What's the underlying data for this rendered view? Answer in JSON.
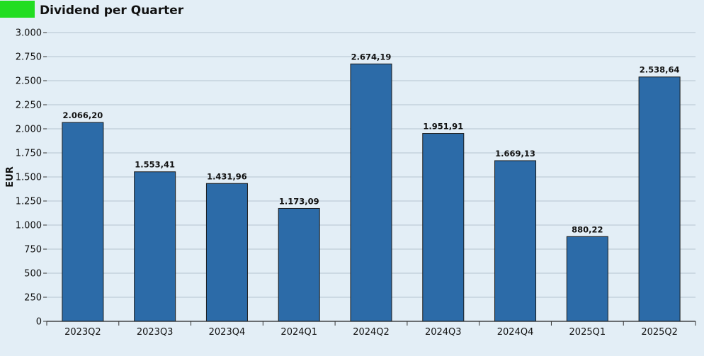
{
  "header": {
    "title": "Dividend per Quarter",
    "swatch_color": "#22dd22"
  },
  "chart_data": {
    "type": "bar",
    "title": "Dividend per Quarter",
    "xlabel": "",
    "ylabel": "EUR",
    "categories": [
      "2023Q2",
      "2023Q3",
      "2023Q4",
      "2024Q1",
      "2024Q2",
      "2024Q3",
      "2024Q4",
      "2025Q1",
      "2025Q2"
    ],
    "values": [
      2066.2,
      1553.41,
      1431.96,
      1173.09,
      2674.19,
      1951.91,
      1669.13,
      880.22,
      2538.64
    ],
    "value_labels": [
      "2.066,20",
      "1.553,41",
      "1.431,96",
      "1.173,09",
      "2.674,19",
      "1.951,91",
      "1.669,13",
      "880,22",
      "2.538,64"
    ],
    "ylim": [
      0,
      3000
    ],
    "yticks": [
      0,
      250,
      500,
      750,
      1000,
      1250,
      1500,
      1750,
      2000,
      2250,
      2500,
      2750,
      3000
    ],
    "ytick_labels": [
      "0",
      "250",
      "500",
      "750",
      "1.000",
      "1.250",
      "1.500",
      "1.750",
      "2.000",
      "2.250",
      "2.500",
      "2.750",
      "3.000"
    ],
    "grid": true,
    "legend": "none",
    "bar_color": "#2c6ba8",
    "grid_color": "#b4c4d0"
  }
}
